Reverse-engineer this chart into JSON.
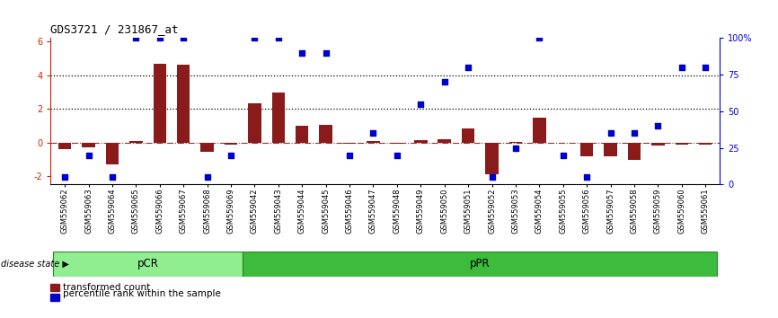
{
  "title": "GDS3721 / 231867_at",
  "samples": [
    "GSM559062",
    "GSM559063",
    "GSM559064",
    "GSM559065",
    "GSM559066",
    "GSM559067",
    "GSM559068",
    "GSM559069",
    "GSM559042",
    "GSM559043",
    "GSM559044",
    "GSM559045",
    "GSM559046",
    "GSM559047",
    "GSM559048",
    "GSM559049",
    "GSM559050",
    "GSM559051",
    "GSM559052",
    "GSM559053",
    "GSM559054",
    "GSM559055",
    "GSM559056",
    "GSM559057",
    "GSM559058",
    "GSM559059",
    "GSM559060",
    "GSM559061"
  ],
  "transformed_count": [
    -0.4,
    -0.3,
    -1.3,
    0.1,
    4.65,
    4.6,
    -0.55,
    -0.15,
    2.35,
    2.95,
    1.0,
    1.05,
    -0.1,
    0.1,
    -0.1,
    0.15,
    0.2,
    0.85,
    -1.9,
    0.05,
    1.45,
    0.0,
    -0.85,
    -0.85,
    -1.05,
    -0.2,
    -0.15,
    -0.15
  ],
  "percentile_rank": [
    5,
    20,
    5,
    100,
    100,
    100,
    5,
    20,
    100,
    100,
    90,
    90,
    20,
    35,
    20,
    55,
    70,
    80,
    5,
    25,
    100,
    20,
    5,
    35,
    35,
    40,
    80,
    80
  ],
  "pcr_count": 8,
  "ylim_left": [
    -2.5,
    6.2
  ],
  "ylim_right": [
    0,
    100
  ],
  "bar_color": "#8B1A1A",
  "dot_color": "#0000CC",
  "background_color": "#FFFFFF",
  "legend_bar_label": "transformed count",
  "legend_dot_label": "percentile rank within the sample",
  "hline_y": [
    4.0,
    2.0
  ],
  "left_yticks": [
    -2,
    0,
    2,
    4,
    6
  ],
  "right_yticks": [
    0,
    25,
    50,
    75,
    100
  ],
  "right_yticklabels": [
    "0",
    "25",
    "50",
    "75",
    "100%"
  ],
  "pcr_color": "#90EE90",
  "ppr_color": "#3CBB3C",
  "group_sep_color": "#228B22"
}
